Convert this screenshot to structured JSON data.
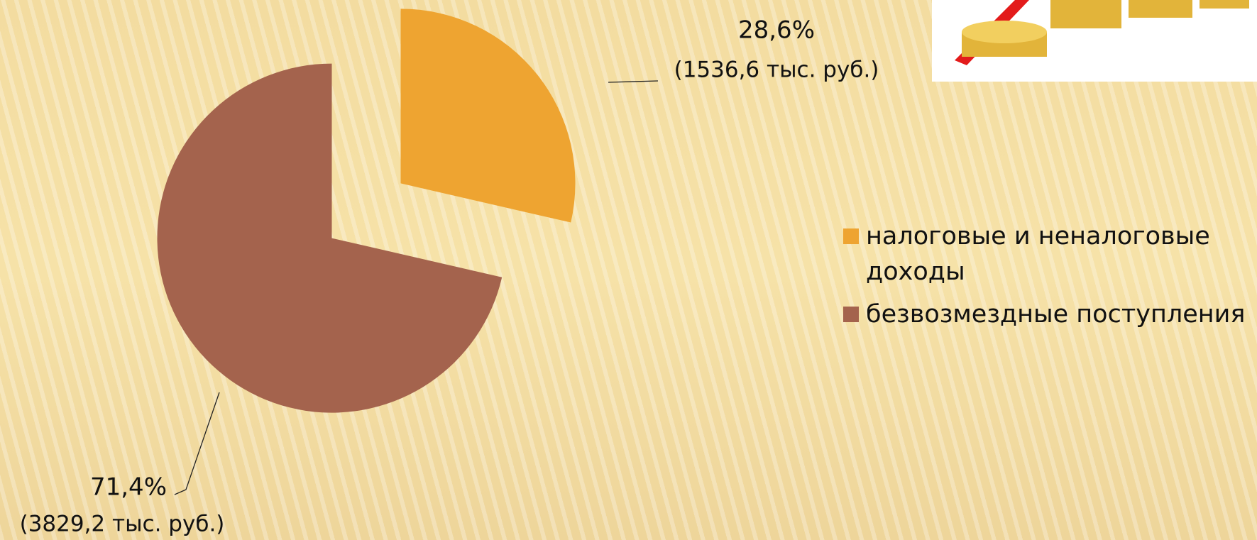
{
  "chart_data": {
    "type": "pie",
    "categories": [
      "налоговые и неналоговые доходы",
      "безвозмездные поступления"
    ],
    "values": [
      28.6,
      71.4
    ],
    "value_labels": [
      "28,6%",
      "71,4%"
    ],
    "detail_labels": [
      "(1536,6 тыс. руб.)",
      "(3829,2 тыс. руб.)"
    ],
    "colors": [
      "#eea431",
      "#a4634d"
    ],
    "legend": "right"
  }
}
